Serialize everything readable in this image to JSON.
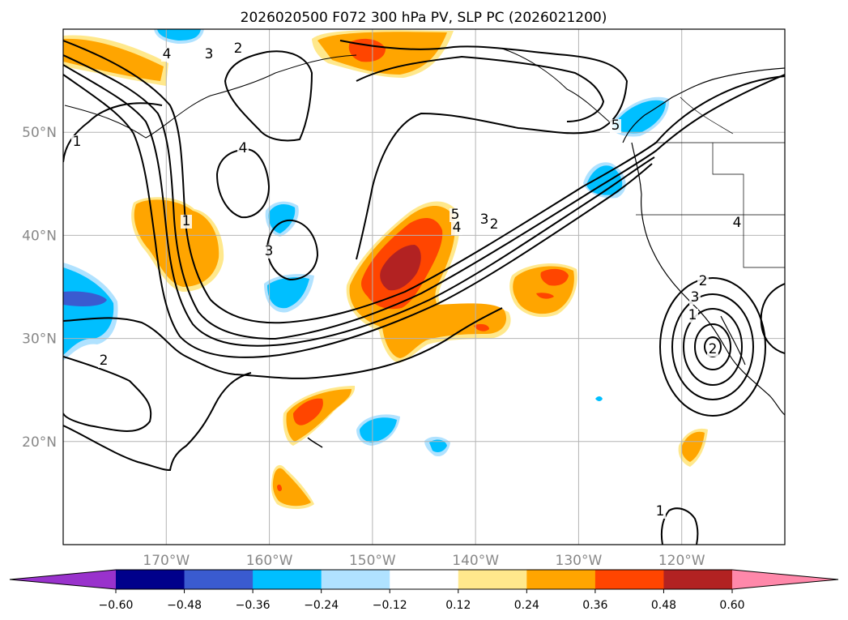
{
  "chart_data": {
    "type": "contour-map",
    "title": "2026020500 F072 300 hPa PV, SLP PC (2026021200)",
    "x_ticks": [
      {
        "lon": -170,
        "label": "170°W"
      },
      {
        "lon": -160,
        "label": "160°W"
      },
      {
        "lon": -150,
        "label": "150°W"
      },
      {
        "lon": -140,
        "label": "140°W"
      },
      {
        "lon": -130,
        "label": "130°W"
      },
      {
        "lon": -120,
        "label": "120°W"
      }
    ],
    "y_ticks": [
      {
        "lat": 50,
        "label": "50°N"
      },
      {
        "lat": 40,
        "label": "40°N"
      },
      {
        "lat": 30,
        "label": "30°N"
      },
      {
        "lat": 20,
        "label": "20°N"
      }
    ],
    "extent": {
      "lon_min": -180,
      "lon_max": -110,
      "lat_min": 10,
      "lat_max": 60
    },
    "grid": true,
    "colorbar": {
      "position": "bottom",
      "extend": "both",
      "levels": [
        -0.6,
        -0.48,
        -0.36,
        -0.24,
        -0.12,
        0.12,
        0.24,
        0.36,
        0.48,
        0.6
      ],
      "tick_labels": [
        "−0.60",
        "−0.48",
        "−0.36",
        "−0.24",
        "−0.12",
        "0.12",
        "0.24",
        "0.36",
        "0.48",
        "0.60"
      ],
      "colors": [
        "#9932cc",
        "#00008b",
        "#3a5bd0",
        "#00bfff",
        "#b0e2ff",
        "#ffffff",
        "#ffe88c",
        "#ffa500",
        "#ff4500",
        "#b22222",
        "#ff88aa"
      ]
    },
    "pv_anomalies": [
      {
        "lon": -177,
        "lat": 57.5,
        "value": 0.25
      },
      {
        "lon": -151,
        "lat": 57.5,
        "value": 0.38
      },
      {
        "lon": -168,
        "lat": 40,
        "value": 0.3
      },
      {
        "lon": -146,
        "lat": 37,
        "value": 0.5
      },
      {
        "lon": -140,
        "lat": 31,
        "value": 0.3
      },
      {
        "lon": -132,
        "lat": 35.5,
        "value": 0.38
      },
      {
        "lon": -157,
        "lat": 22,
        "value": 0.4
      },
      {
        "lon": -159,
        "lat": 15,
        "value": 0.3
      },
      {
        "lon": -119,
        "lat": 19.5,
        "value": 0.25
      },
      {
        "lon": -176,
        "lat": 34,
        "value": -0.45
      },
      {
        "lon": -158,
        "lat": 35,
        "value": -0.3
      },
      {
        "lon": -158,
        "lat": 41.5,
        "value": -0.28
      },
      {
        "lon": -149,
        "lat": 21,
        "value": -0.3
      },
      {
        "lon": -144,
        "lat": 19.5,
        "value": -0.28
      },
      {
        "lon": -128,
        "lat": 44.5,
        "value": -0.3
      },
      {
        "lon": -125,
        "lat": 51.5,
        "value": -0.3
      },
      {
        "lon": -164,
        "lat": 60,
        "value": -0.3
      }
    ],
    "slp_pc_contours": [
      {
        "level": 1,
        "labels": [
          "1",
          "1",
          "1",
          "1"
        ]
      },
      {
        "level": 2,
        "labels": [
          "2",
          "2",
          "2",
          "2"
        ]
      },
      {
        "level": 3,
        "labels": [
          "3",
          "3",
          "3",
          "3"
        ]
      },
      {
        "level": 4,
        "labels": [
          "4",
          "4",
          "4"
        ]
      },
      {
        "level": 5,
        "labels": [
          "5",
          "5"
        ]
      }
    ],
    "contour_labels": [
      "4",
      "3",
      "2",
      "1",
      "4",
      "3",
      "2",
      "1",
      "2",
      "5",
      "4",
      "3",
      "2",
      "1",
      "2",
      "3",
      "5",
      "4",
      "1"
    ]
  }
}
